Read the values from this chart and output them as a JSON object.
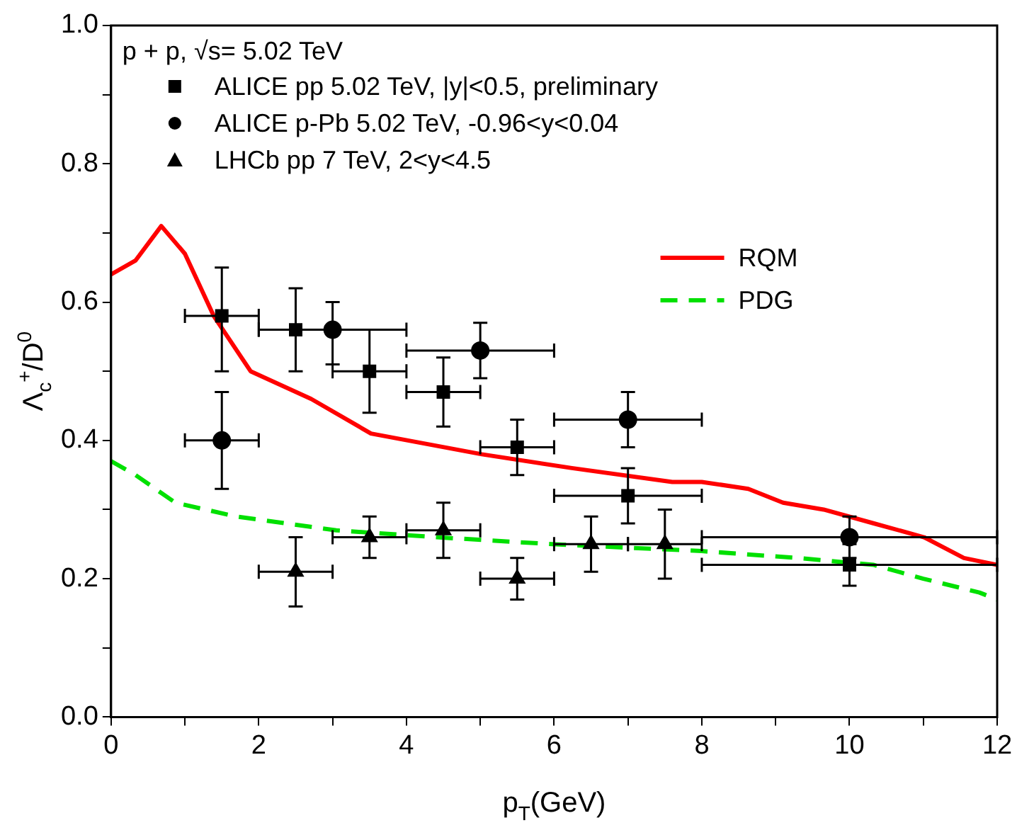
{
  "chart_data": {
    "type": "scatter",
    "xlabel": "p$_{T}$(GeV)",
    "ylabel": "Λ$_{c}$$^{+}$/D$^{0}$",
    "annotations": [
      "p + p, √s= 5.02 TeV"
    ],
    "xlim": [
      0,
      12
    ],
    "ylim": [
      0,
      1
    ],
    "xticks": [
      0,
      {
        "value": 1,
        "label": null
      },
      2,
      {
        "value": 3,
        "label": null
      },
      4,
      {
        "value": 5,
        "label": null
      },
      6,
      {
        "value": 7,
        "label": null
      },
      8,
      {
        "value": 9,
        "label": null
      },
      10,
      {
        "value": 11,
        "label": null
      },
      12
    ],
    "yticks": [
      {
        "value": 0,
        "label": "0.0"
      },
      {
        "value": 0.1,
        "label": null
      },
      {
        "value": 0.2,
        "label": "0.2"
      },
      {
        "value": 0.3,
        "label": null
      },
      {
        "value": 0.4,
        "label": "0.4"
      },
      {
        "value": 0.5,
        "label": null
      },
      {
        "value": 0.6,
        "label": "0.6"
      },
      {
        "value": 0.7,
        "label": null
      },
      {
        "value": 0.8,
        "label": "0.8"
      },
      {
        "value": 0.9,
        "label": null
      },
      {
        "value": 1,
        "label": "1.0"
      }
    ],
    "grid": false,
    "legend": "top left",
    "series": [
      {
        "name": "ALICE pp 5.02 TeV, |y|<0.5, preliminary",
        "type": "scatter",
        "marker": "square",
        "color": "#000000",
        "x": [
          1.5,
          2.5,
          3.5,
          4.5,
          5.5,
          7,
          10
        ],
        "values": [
          0.58,
          0.56,
          0.5,
          0.47,
          0.39,
          0.32,
          0.22
        ],
        "errors": [
          [
            0.5,
            0.65
          ],
          [
            0.5,
            0.62
          ],
          [
            0.44,
            0.56
          ],
          [
            0.42,
            0.52
          ],
          [
            0.35,
            0.43
          ],
          [
            0.28,
            0.36
          ],
          [
            0.19,
            0.25
          ]
        ],
        "xerrors": [
          [
            1,
            2
          ],
          [
            2,
            2.5
          ],
          [
            3,
            4
          ],
          [
            4,
            5
          ],
          [
            5,
            6
          ],
          [
            6,
            8
          ],
          [
            8,
            12
          ]
        ]
      },
      {
        "name": "ALICE p-Pb 5.02 TeV, -0.96<y<0.04",
        "type": "scatter",
        "marker": "circle",
        "color": "#000000",
        "x": [
          1.5,
          3,
          5,
          7,
          10
        ],
        "values": [
          0.4,
          0.56,
          0.53,
          0.43,
          0.26
        ],
        "errors": [
          [
            0.33,
            0.47
          ],
          [
            0.51,
            0.6
          ],
          [
            0.49,
            0.57
          ],
          [
            0.39,
            0.47
          ],
          [
            0.23,
            0.29
          ]
        ],
        "xerrors": [
          [
            1,
            2
          ],
          [
            2,
            4
          ],
          [
            4,
            6
          ],
          [
            6,
            8
          ],
          [
            8,
            12
          ]
        ]
      },
      {
        "name": "LHCb pp 7 TeV, 2<y<4.5",
        "type": "scatter",
        "marker": "triangle",
        "color": "#000000",
        "x": [
          2.5,
          3.5,
          4.5,
          5.5,
          6.5,
          7.5
        ],
        "values": [
          0.21,
          0.26,
          0.27,
          0.2,
          0.25,
          0.25
        ],
        "errors": [
          [
            0.16,
            0.26
          ],
          [
            0.23,
            0.29
          ],
          [
            0.23,
            0.31
          ],
          [
            0.17,
            0.23
          ],
          [
            0.21,
            0.29
          ],
          [
            0.2,
            0.3
          ]
        ],
        "xerrors": [
          [
            2,
            3
          ],
          [
            3,
            4
          ],
          [
            4,
            5
          ],
          [
            5,
            6
          ],
          [
            6,
            7
          ],
          [
            7,
            8
          ]
        ]
      },
      {
        "name": "RQM",
        "type": "line",
        "marker": "none",
        "line_style": "solid",
        "color": "#ff0000",
        "x": [
          0,
          0.33,
          0.68,
          1.0,
          1.39,
          1.89,
          2.71,
          3.52,
          5.02,
          6.24,
          7.6,
          8.0,
          8.63,
          9.1,
          9.65,
          10.33,
          11.01,
          11.55,
          12
        ],
        "values": [
          0.64,
          0.66,
          0.71,
          0.67,
          0.58,
          0.5,
          0.46,
          0.41,
          0.38,
          0.36,
          0.34,
          0.34,
          0.33,
          0.31,
          0.3,
          0.28,
          0.26,
          0.23,
          0.22
        ]
      },
      {
        "name": "PDG",
        "type": "line",
        "marker": "none",
        "line_style": "dashed",
        "color": "#00e000",
        "x": [
          0,
          0.33,
          0.87,
          1.69,
          3.05,
          4.41,
          5.97,
          8.0,
          9.3,
          10.33,
          11.0,
          11.76,
          12
        ],
        "values": [
          0.37,
          0.35,
          0.31,
          0.29,
          0.27,
          0.26,
          0.25,
          0.24,
          0.23,
          0.22,
          0.2,
          0.18,
          0.17
        ]
      }
    ]
  }
}
